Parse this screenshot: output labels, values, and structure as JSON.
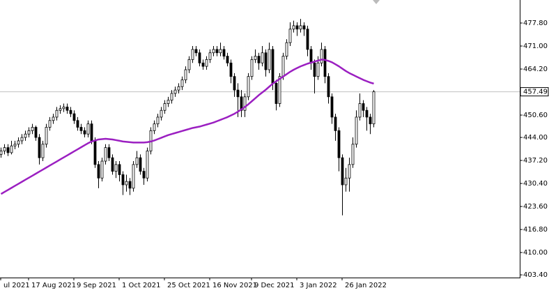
{
  "chart_data": {
    "type": "candlestick",
    "ylim": [
      402.6,
      484.6
    ],
    "yticks": [
      {
        "value": 477.8,
        "label": "477.80"
      },
      {
        "value": 471.0,
        "label": "471.00"
      },
      {
        "value": 464.2,
        "label": "464.20"
      },
      {
        "value": 450.6,
        "label": "450.60"
      },
      {
        "value": 444.0,
        "label": "444.00"
      },
      {
        "value": 437.2,
        "label": "437.20"
      },
      {
        "value": 430.4,
        "label": "430.40"
      },
      {
        "value": 423.6,
        "label": "423.60"
      },
      {
        "value": 416.8,
        "label": "416.80"
      },
      {
        "value": 410.0,
        "label": "410.00"
      },
      {
        "value": 403.4,
        "label": "403.40"
      }
    ],
    "current_price": 457.49,
    "up_color": "#ffffff",
    "down_color": "#000000",
    "wick_color": "#000000",
    "categories": [
      "ul 2021",
      null,
      null,
      null,
      null,
      null,
      null,
      null,
      "17 Aug 2021",
      null,
      null,
      null,
      null,
      null,
      null,
      null,
      null,
      null,
      null,
      null,
      null,
      "9 Sep 2021",
      null,
      null,
      null,
      null,
      null,
      null,
      null,
      null,
      null,
      null,
      null,
      null,
      "1 Oct 2021",
      null,
      null,
      null,
      null,
      null,
      null,
      null,
      null,
      null,
      null,
      null,
      null,
      "25 Oct 2021",
      null,
      null,
      null,
      null,
      null,
      null,
      null,
      null,
      null,
      null,
      null,
      null,
      "16 Nov 2021",
      null,
      null,
      null,
      null,
      null,
      null,
      null,
      null,
      null,
      null,
      null,
      "9 Dec 2021",
      null,
      null,
      null,
      null,
      null,
      null,
      null,
      null,
      null,
      null,
      null,
      null,
      "3 Jan 2022",
      null,
      null,
      null,
      null,
      null,
      null,
      null,
      null,
      null,
      null,
      null,
      null,
      "26 Jan 2022",
      null,
      null,
      null,
      null,
      null,
      null,
      null,
      null,
      null
    ],
    "ohlc": [
      [
        439,
        441,
        438,
        440
      ],
      [
        440,
        442,
        439,
        441
      ],
      [
        441,
        442,
        438.5,
        439.5
      ],
      [
        439.5,
        443,
        439,
        441.5
      ],
      [
        441.5,
        443,
        440.5,
        442
      ],
      [
        442,
        444,
        441,
        443
      ],
      [
        443,
        445,
        442,
        444
      ],
      [
        444,
        446,
        443,
        445
      ],
      [
        445,
        447,
        444,
        446
      ],
      [
        446,
        448,
        445,
        447
      ],
      [
        447,
        447.5,
        443,
        444
      ],
      [
        444,
        445,
        436,
        438
      ],
      [
        438,
        443,
        437,
        442
      ],
      [
        442,
        448,
        441,
        447
      ],
      [
        447,
        450,
        446,
        449
      ],
      [
        449,
        451,
        448,
        450
      ],
      [
        450,
        453,
        449,
        452
      ],
      [
        452,
        453.5,
        451,
        452.5
      ],
      [
        452.5,
        454,
        451.5,
        453
      ],
      [
        453,
        454,
        451,
        452
      ],
      [
        452,
        453,
        450,
        451
      ],
      [
        451,
        452,
        448,
        449
      ],
      [
        449,
        450,
        446,
        447
      ],
      [
        447,
        448,
        445,
        446
      ],
      [
        446,
        447,
        444,
        445
      ],
      [
        445,
        449,
        444,
        448
      ],
      [
        448,
        449,
        442,
        443
      ],
      [
        443,
        444,
        435,
        436
      ],
      [
        436,
        437,
        429,
        432
      ],
      [
        432,
        438,
        431,
        437
      ],
      [
        437,
        442,
        436,
        441
      ],
      [
        441,
        442,
        437,
        438
      ],
      [
        438,
        439,
        433,
        434
      ],
      [
        434,
        437,
        432,
        436
      ],
      [
        436,
        437,
        431,
        433
      ],
      [
        433,
        434,
        427,
        430
      ],
      [
        430,
        433,
        428,
        431
      ],
      [
        431,
        432,
        427,
        429
      ],
      [
        429,
        437,
        428,
        436
      ],
      [
        436,
        440,
        435,
        438
      ],
      [
        438,
        439,
        433,
        434
      ],
      [
        434,
        435,
        430,
        432
      ],
      [
        432,
        441,
        431,
        440
      ],
      [
        440,
        447,
        439,
        446
      ],
      [
        446,
        449,
        445,
        448
      ],
      [
        448,
        451,
        447,
        450
      ],
      [
        450,
        453,
        449,
        452
      ],
      [
        452,
        455,
        451,
        454
      ],
      [
        454,
        456,
        453,
        455
      ],
      [
        455,
        458,
        454,
        457
      ],
      [
        457,
        459,
        456,
        458
      ],
      [
        458,
        460,
        457,
        459
      ],
      [
        459,
        462,
        458,
        461
      ],
      [
        461,
        465,
        460,
        464
      ],
      [
        464,
        468,
        463,
        467
      ],
      [
        467,
        471,
        466,
        470
      ],
      [
        470,
        471,
        468,
        469
      ],
      [
        469,
        470,
        465,
        466
      ],
      [
        466,
        467,
        464,
        465
      ],
      [
        465,
        468,
        464,
        467
      ],
      [
        467,
        470,
        466,
        469
      ],
      [
        469,
        471,
        468,
        470
      ],
      [
        470,
        471,
        468,
        469
      ],
      [
        469,
        472,
        468,
        470
      ],
      [
        470,
        471,
        467,
        468
      ],
      [
        468,
        469,
        465,
        466
      ],
      [
        466,
        467,
        460,
        462
      ],
      [
        462,
        463,
        456,
        458
      ],
      [
        458,
        460,
        450,
        456
      ],
      [
        456,
        458,
        450,
        452
      ],
      [
        452,
        457,
        450,
        456
      ],
      [
        456,
        463,
        455,
        462
      ],
      [
        462,
        468,
        461,
        467
      ],
      [
        467,
        470,
        466,
        468
      ],
      [
        468,
        469,
        464,
        466
      ],
      [
        466,
        471,
        465,
        469
      ],
      [
        469,
        470,
        462,
        464
      ],
      [
        464,
        472,
        463,
        470
      ],
      [
        470,
        471,
        458,
        460
      ],
      [
        460,
        461,
        452,
        454
      ],
      [
        454,
        463,
        453,
        462
      ],
      [
        462,
        469,
        461,
        468
      ],
      [
        468,
        473,
        467,
        472
      ],
      [
        472,
        478,
        471,
        476
      ],
      [
        476,
        478.5,
        475,
        477
      ],
      [
        477,
        478,
        474,
        476
      ],
      [
        476,
        479,
        475,
        477
      ],
      [
        477,
        478,
        474,
        476
      ],
      [
        476,
        477,
        468,
        470
      ],
      [
        470,
        471,
        464,
        466
      ],
      [
        466,
        467,
        457,
        462
      ],
      [
        462,
        468,
        461,
        466
      ],
      [
        466,
        472,
        465,
        470
      ],
      [
        470,
        471,
        460,
        462
      ],
      [
        462,
        463,
        454,
        456
      ],
      [
        456,
        457,
        448,
        450
      ],
      [
        450,
        451,
        443,
        446
      ],
      [
        446,
        447,
        434,
        438
      ],
      [
        438,
        439,
        421,
        430
      ],
      [
        430,
        435,
        428,
        432
      ],
      [
        432,
        438,
        428,
        436
      ],
      [
        436,
        444,
        435,
        442
      ],
      [
        442,
        452,
        441,
        450
      ],
      [
        450,
        457,
        449,
        454
      ],
      [
        454,
        455,
        450,
        452
      ],
      [
        452,
        453,
        446,
        450
      ],
      [
        450,
        451,
        445,
        448
      ],
      [
        448,
        458,
        447,
        457.5
      ]
    ],
    "moving_average": {
      "color": "#9b1fc1",
      "values": [
        427.3,
        427.9,
        428.5,
        429.1,
        429.7,
        430.3,
        430.9,
        431.5,
        432.1,
        432.7,
        433.3,
        433.9,
        434.5,
        435.1,
        435.7,
        436.3,
        436.9,
        437.5,
        438.1,
        438.7,
        439.3,
        439.9,
        440.5,
        441.1,
        441.7,
        442.3,
        442.8,
        443.1,
        443.4,
        443.5,
        443.6,
        443.5,
        443.4,
        443.2,
        443.0,
        442.8,
        442.7,
        442.6,
        442.5,
        442.5,
        442.5,
        442.5,
        442.6,
        442.8,
        443.1,
        443.5,
        443.9,
        444.3,
        444.7,
        445.0,
        445.3,
        445.6,
        445.9,
        446.2,
        446.5,
        446.8,
        447.0,
        447.2,
        447.5,
        447.8,
        448.1,
        448.4,
        448.8,
        449.2,
        449.6,
        450.0,
        450.5,
        451.0,
        451.6,
        452.3,
        453.0,
        453.8,
        454.7,
        455.6,
        456.5,
        457.3,
        458.1,
        459.0,
        459.9,
        460.6,
        461.3,
        462.0,
        462.7,
        463.4,
        464.0,
        464.5,
        465.0,
        465.4,
        465.8,
        466.1,
        466.4,
        466.7,
        467.0,
        466.9,
        466.6,
        466.2,
        465.6,
        465.0,
        464.3,
        463.6,
        463.0,
        462.5,
        462.0,
        461.5,
        461.0,
        460.6,
        460.2,
        459.9
      ]
    }
  }
}
